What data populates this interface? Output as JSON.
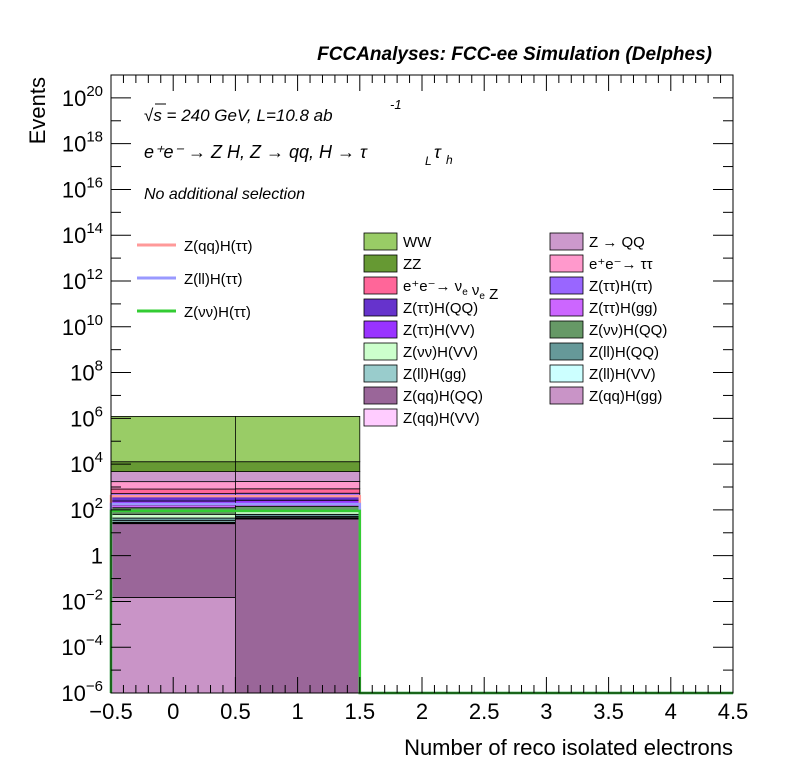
{
  "header": {
    "title": "FCCAnalyses: FCC-ee Simulation (Delphes)"
  },
  "annotations": {
    "energy": "√s = 240 GeV, L=10.8 ab",
    "energy_exp": "-1",
    "process": "e⁺e⁻ → Z H, Z → qq, H → τ",
    "process_sub1": "L",
    "process_tau2": "τ",
    "process_sub2": "h",
    "selection": "No additional selection"
  },
  "chart_data": {
    "type": "bar",
    "xlabel": "Number of reco isolated electrons",
    "ylabel": "Events",
    "xlim": [
      -0.5,
      4.5
    ],
    "ylim": [
      1e-06,
      1e+21
    ],
    "yscale": "log",
    "x_ticks": [
      "−0.5",
      "0",
      "0.5",
      "1",
      "1.5",
      "2",
      "2.5",
      "3",
      "3.5",
      "4",
      "4.5"
    ],
    "x_tick_values": [
      -0.5,
      0,
      0.5,
      1,
      1.5,
      2,
      2.5,
      3,
      3.5,
      4,
      4.5
    ],
    "y_ticks": [
      {
        "base": "10",
        "exp": "−6",
        "value": 1e-06
      },
      {
        "base": "10",
        "exp": "−4",
        "value": 0.0001
      },
      {
        "base": "10",
        "exp": "−2",
        "value": 0.01
      },
      {
        "base": "1",
        "exp": "",
        "value": 1
      },
      {
        "base": "10",
        "exp": "2",
        "value": 100.0
      },
      {
        "base": "10",
        "exp": "4",
        "value": 10000.0
      },
      {
        "base": "10",
        "exp": "6",
        "value": 1000000.0
      },
      {
        "base": "10",
        "exp": "8",
        "value": 100000000.0
      },
      {
        "base": "10",
        "exp": "10",
        "value": 10000000000.0
      },
      {
        "base": "10",
        "exp": "12",
        "value": 1000000000000.0
      },
      {
        "base": "10",
        "exp": "14",
        "value": 100000000000000.0
      },
      {
        "base": "10",
        "exp": "16",
        "value": 1e+16
      },
      {
        "base": "10",
        "exp": "18",
        "value": 1e+18
      },
      {
        "base": "10",
        "exp": "20",
        "value": 1e+20
      }
    ],
    "bins": [
      [
        -0.5,
        0.5
      ],
      [
        0.5,
        1.5
      ]
    ],
    "stack": [
      {
        "name": "Z(qq)H(gg)",
        "color": "#c994c7",
        "values": [
          0.015,
          0
        ]
      },
      {
        "name": "Z(qq)H(QQ)",
        "color": "#9a6699",
        "values": [
          25,
          40
        ]
      },
      {
        "name": "Z(qq)H(VV)",
        "color": "#ffccff",
        "values": [
          2,
          3
        ]
      },
      {
        "name": "Z(ll)H(VV)",
        "color": "#ccffff",
        "values": [
          2,
          3
        ]
      },
      {
        "name": "Z(ll)H(gg)",
        "color": "#99cccc",
        "values": [
          5,
          6
        ]
      },
      {
        "name": "Z(ll)H(QQ)",
        "color": "#669999",
        "values": [
          10,
          12
        ]
      },
      {
        "name": "Z(νν)H(VV)",
        "color": "#ccffcc",
        "values": [
          20,
          20
        ]
      },
      {
        "name": "Z(νν)H(QQ)",
        "color": "#669966",
        "values": [
          60,
          60
        ]
      },
      {
        "name": "Z(ττ)H(gg)",
        "color": "#cc66ff",
        "values": [
          40,
          40
        ]
      },
      {
        "name": "Z(ττ)H(VV)",
        "color": "#9933ff",
        "values": [
          80,
          80
        ]
      },
      {
        "name": "Z(ττ)H(QQ)",
        "color": "#6633cc",
        "values": [
          150,
          150
        ]
      },
      {
        "name": "Z(ττ)H(ττ)",
        "color": "#9966ff",
        "values": [
          120,
          120
        ]
      },
      {
        "name": "e⁺e⁻→ ν_e ν_e Z",
        "color": "#ff6699",
        "values": [
          300,
          300
        ]
      },
      {
        "name": "e⁺e⁻→ ττ",
        "color": "#ff99cc",
        "values": [
          900,
          900
        ]
      },
      {
        "name": "Z → QQ",
        "color": "#cc99cc",
        "values": [
          3000,
          3000
        ]
      },
      {
        "name": "ZZ",
        "color": "#669933",
        "values": [
          8000,
          8000
        ]
      },
      {
        "name": "WW",
        "color": "#99cc66",
        "values": [
          1200000,
          1200000
        ]
      }
    ],
    "overlay_lines": [
      {
        "name": "Z(qq)H(ττ)",
        "color": "#ff9999",
        "values": [
          400,
          400
        ]
      },
      {
        "name": "Z(ll)H(ττ)",
        "color": "#9999ff",
        "values": [
          180,
          180
        ]
      },
      {
        "name": "Z(νν)H(ττ)",
        "color": "#33cc33",
        "values": [
          90,
          90
        ]
      }
    ],
    "legend_stack_columns": [
      [
        "WW",
        "ZZ",
        "e⁺e⁻→ ν_e ν_e Z",
        "Z(ττ)H(QQ)",
        "Z(ττ)H(VV)",
        "Z(νν)H(VV)",
        "Z(ll)H(gg)",
        "Z(qq)H(QQ)",
        "Z(qq)H(VV)"
      ],
      [
        "Z → QQ",
        "e⁺e⁻→ ττ",
        "Z(ττ)H(ττ)",
        "Z(ττ)H(gg)",
        "Z(νν)H(QQ)",
        "Z(ll)H(QQ)",
        "Z(ll)H(VV)",
        "Z(qq)H(gg)"
      ]
    ],
    "legend_placement": "top",
    "grid": false
  }
}
